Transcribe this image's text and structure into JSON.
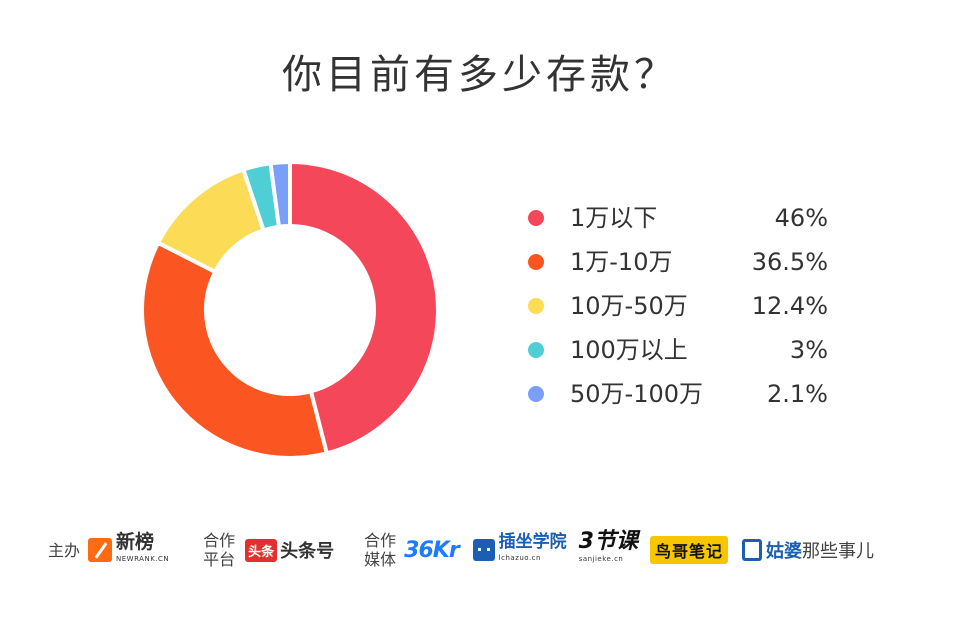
{
  "chart_data": {
    "type": "pie",
    "title": "你目前有多少存款？",
    "series": [
      {
        "label": "1万以下",
        "value": 46,
        "display": "46%",
        "color": "#f4485a"
      },
      {
        "label": "1万-10万",
        "value": 36.5,
        "display": "36.5%",
        "color": "#fb5522"
      },
      {
        "label": "10万-50万",
        "value": 12.4,
        "display": "12.4%",
        "color": "#fcdc56"
      },
      {
        "label": "100万以上",
        "value": 3,
        "display": "3%",
        "color": "#4fcfd5"
      },
      {
        "label": "50万-100万",
        "value": 2.1,
        "display": "2.1%",
        "color": "#7a9ff8"
      }
    ],
    "donut": true,
    "legend": "right"
  },
  "footer": {
    "host_label": "主办",
    "host_logo": {
      "mark": "newrank-mark-icon",
      "name": "新榜",
      "sub": "NEWRANK.CN"
    },
    "platform_label": [
      "合作",
      "平台"
    ],
    "platform_logo": {
      "badge": "头条",
      "name": "头条号"
    },
    "media_label": [
      "合作",
      "媒体"
    ],
    "media_logos": [
      {
        "name": "36Kr"
      },
      {
        "name": "插坐学院",
        "sub": "lchazuo.cn"
      },
      {
        "name": "3节课",
        "sub": "sanjieke.cn"
      },
      {
        "name": "鸟哥笔记"
      },
      {
        "name": "姑婆",
        "suffix": "那些事儿"
      }
    ]
  }
}
